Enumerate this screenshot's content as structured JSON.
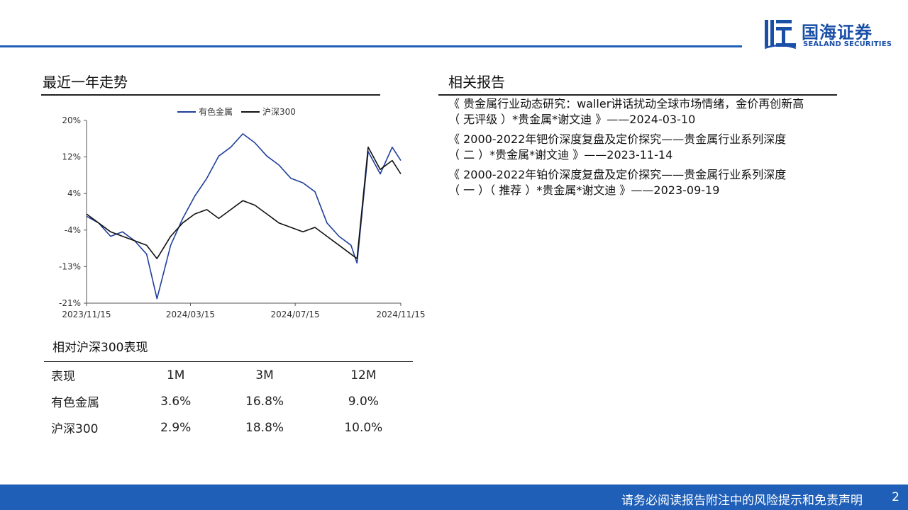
{
  "brand": {
    "name_cn": "国海证券",
    "name_en": "SEALAND SECURITIES"
  },
  "left_section": {
    "title": "最近一年走势"
  },
  "right_section": {
    "title": "相关报告"
  },
  "chart_data": {
    "type": "line",
    "legend_position": "top-center",
    "x_ticks": [
      "2023/11/15",
      "2024/03/15",
      "2024/07/15",
      "2024/11/15"
    ],
    "y_ticks": [
      "20%",
      "12%",
      "4%",
      "-4%",
      "-13%",
      "-21%"
    ],
    "ylim": [
      -21,
      20
    ],
    "y_unit": "%",
    "xlabel": "",
    "ylabel": "",
    "title": "",
    "colors": {
      "有色金属": "#1f3f9a",
      "沪深300": "#111111"
    },
    "series": [
      {
        "name": "有色金属",
        "x": [
          "2023/11/15",
          "2023/11/29",
          "2023/12/13",
          "2023/12/27",
          "2024/01/10",
          "2024/01/24",
          "2024/02/05",
          "2024/02/21",
          "2024/03/06",
          "2024/03/20",
          "2024/04/03",
          "2024/04/17",
          "2024/05/01",
          "2024/05/15",
          "2024/05/29",
          "2024/06/12",
          "2024/06/26",
          "2024/07/10",
          "2024/07/24",
          "2024/08/07",
          "2024/08/21",
          "2024/09/04",
          "2024/09/18",
          "2024/09/25",
          "2024/10/08",
          "2024/10/22",
          "2024/11/05",
          "2024/11/15"
        ],
        "values": [
          -1.5,
          -3,
          -6,
          -5,
          -7,
          -10,
          -20,
          -8,
          -2,
          3,
          7,
          12,
          14,
          17,
          15,
          12,
          10,
          7,
          6,
          4,
          -3,
          -6,
          -8,
          -12,
          13,
          8,
          14,
          11
        ]
      },
      {
        "name": "沪深300",
        "x": [
          "2023/11/15",
          "2023/11/29",
          "2023/12/13",
          "2023/12/27",
          "2024/01/10",
          "2024/01/24",
          "2024/02/05",
          "2024/02/21",
          "2024/03/06",
          "2024/03/20",
          "2024/04/03",
          "2024/04/17",
          "2024/05/01",
          "2024/05/15",
          "2024/05/29",
          "2024/06/12",
          "2024/06/26",
          "2024/07/10",
          "2024/07/24",
          "2024/08/07",
          "2024/08/21",
          "2024/09/04",
          "2024/09/18",
          "2024/09/25",
          "2024/10/08",
          "2024/10/22",
          "2024/11/05",
          "2024/11/15"
        ],
        "values": [
          -1,
          -3,
          -5,
          -6,
          -7,
          -8,
          -11,
          -6,
          -3,
          -1,
          0,
          -2,
          0,
          2,
          1,
          -1,
          -3,
          -4,
          -5,
          -4,
          -6,
          -8,
          -10,
          -11,
          14,
          9,
          11,
          8
        ]
      }
    ]
  },
  "performance": {
    "title": "相对沪深300表现",
    "headers": [
      "表现",
      "1M",
      "3M",
      "12M"
    ],
    "rows": [
      [
        "有色金属",
        "3.6%",
        "16.8%",
        "9.0%"
      ],
      [
        "沪深300",
        "2.9%",
        "18.8%",
        "10.0%"
      ]
    ]
  },
  "reports": [
    {
      "line1": "《 贵金属行业动态研究：waller讲话扰动全球市场情绪，金价再创新高",
      "line2": "（ 无评级 ）*贵金属*谢文迪 》——2024-03-10"
    },
    {
      "line1": "《 2000-2022年钯价深度复盘及定价探究——贵金属行业系列深度",
      "line2": "（ 二 ）*贵金属*谢文迪 》——2023-11-14"
    },
    {
      "line1": "《 2000-2022年铂价深度复盘及定价探究——贵金属行业系列深度",
      "line2": "（ 一 ）（ 推荐 ）*贵金属*谢文迪 》——2023-09-19"
    }
  ],
  "footer": {
    "disclaimer": "请务必阅读报告附注中的风险提示和免责声明",
    "page": "2"
  }
}
